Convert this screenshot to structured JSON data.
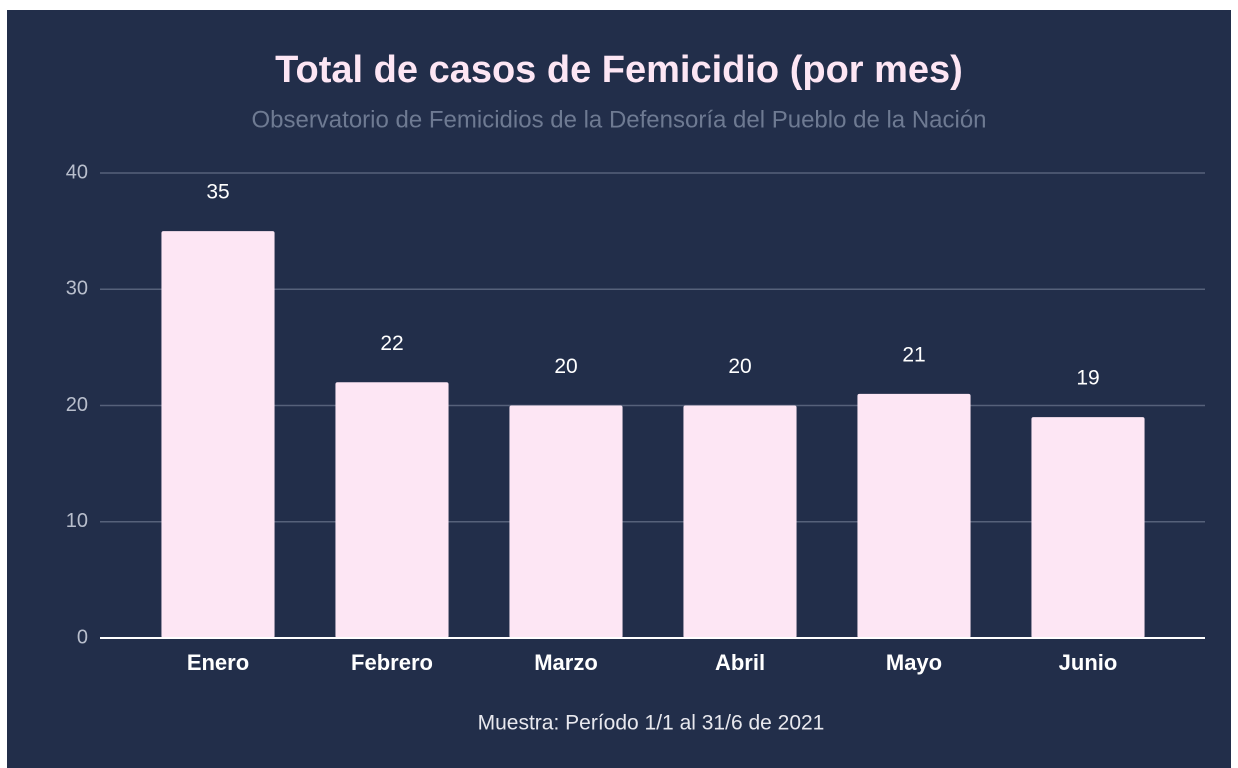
{
  "chart_data": {
    "type": "bar",
    "title": "Total de casos de Femicidio (por mes)",
    "subtitle": "Observatorio de Femicidios de la Defensoría del Pueblo de la Nación",
    "note": "Muestra: Período 1/1 al 31/6 de 2021",
    "categories": [
      "Enero",
      "Febrero",
      "Marzo",
      "Abril",
      "Mayo",
      "Junio"
    ],
    "values": [
      35,
      22,
      20,
      20,
      21,
      19
    ],
    "color": "#fde6f4",
    "ylim": [
      0,
      40
    ],
    "yticks": [
      0,
      10,
      20,
      30,
      40
    ],
    "grid": true
  }
}
